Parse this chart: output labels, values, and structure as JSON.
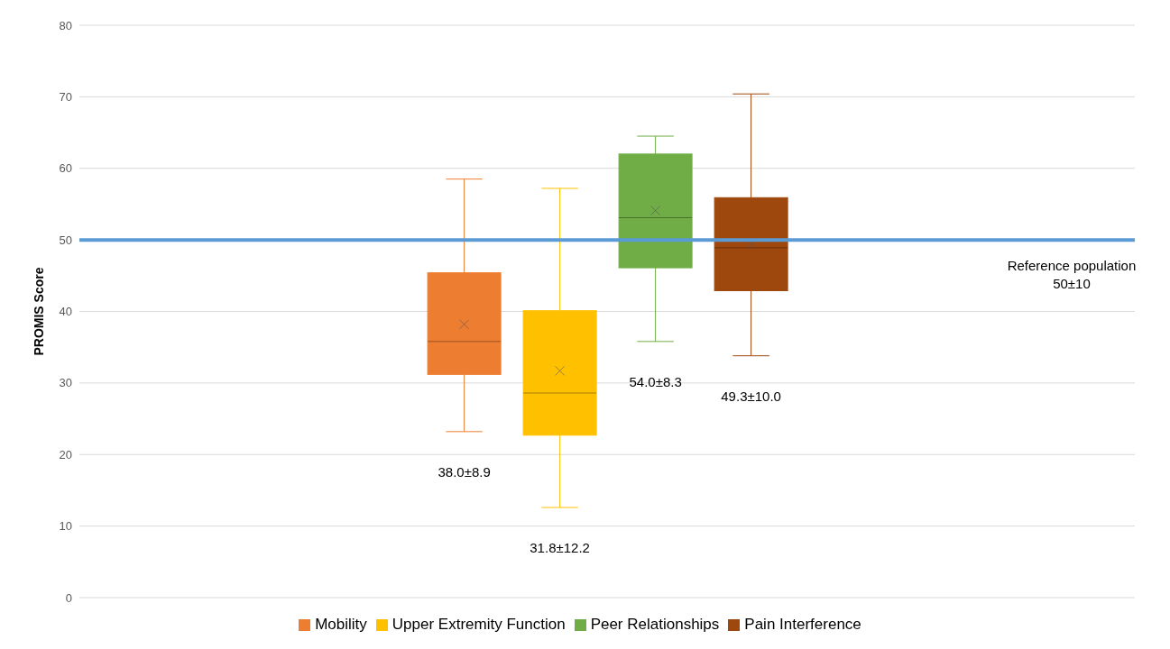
{
  "chart_data": {
    "type": "box",
    "categories": [
      null
    ],
    "ylabel": "PROMIS Score",
    "ylim": [
      0,
      80
    ],
    "yticks": [
      0,
      10,
      20,
      30,
      40,
      50,
      60,
      70,
      80
    ],
    "grid": "y",
    "legend": "bottom",
    "marker": "cross",
    "series": [
      {
        "name": "Mobility",
        "color": "#ed7d31",
        "boxes": [
          {
            "low": 23.2,
            "q1": 31.2,
            "median": 35.8,
            "q3": 45.4,
            "high": 58.5,
            "mean": 38.2
          }
        ]
      },
      {
        "name": "Upper Extremity Function",
        "color": "#ffc000",
        "boxes": [
          {
            "low": 12.6,
            "q1": 22.7,
            "median": 28.6,
            "q3": 40.1,
            "high": 57.2,
            "mean": 31.7
          }
        ]
      },
      {
        "name": "Peer Relationships",
        "color": "#70ad47",
        "boxes": [
          {
            "low": 35.8,
            "q1": 46.1,
            "median": 53.1,
            "q3": 62.0,
            "high": 64.5,
            "mean": 54.1
          }
        ]
      },
      {
        "name": "Pain Interference",
        "color": "#9e480e",
        "boxes": [
          {
            "low": 33.8,
            "q1": 42.9,
            "median": 48.9,
            "q3": 55.9,
            "high": 70.4,
            "mean": 49.4
          }
        ]
      }
    ],
    "ref_lines": [
      {
        "axis": "y",
        "value": 50,
        "label": "Reference population 50±10",
        "color": "#5b9bd5"
      }
    ],
    "annotations": [
      "38.0±8.9",
      "31.8±12.2",
      "54.0±8.3",
      "49.3±10.0"
    ]
  }
}
